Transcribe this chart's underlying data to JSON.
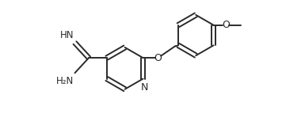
{
  "bg_color": "#ffffff",
  "line_color": "#2a2a2a",
  "line_width": 1.4,
  "font_size": 8.5,
  "figsize": [
    3.85,
    1.58
  ],
  "dpi": 100,
  "xlim": [
    0,
    10.5
  ],
  "ylim": [
    0,
    4.1
  ]
}
